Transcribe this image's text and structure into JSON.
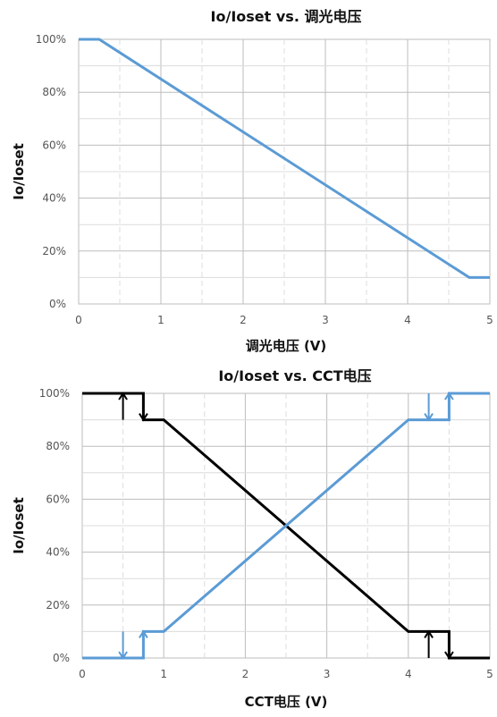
{
  "chart_data": [
    {
      "type": "line",
      "title": "Io/Ioset vs. 调光电压",
      "xlabel": "调光电压 (V)",
      "ylabel": "Io/Ioset",
      "xlim": [
        0,
        5
      ],
      "ylim": [
        0,
        100
      ],
      "x_ticks": [
        "0",
        "1",
        "2",
        "3",
        "4",
        "5"
      ],
      "y_ticks": [
        "0%",
        "20%",
        "40%",
        "60%",
        "80%",
        "100%"
      ],
      "grid": true,
      "series": [
        {
          "color": "#5b9bd5",
          "points": [
            [
              0,
              100
            ],
            [
              0.25,
              100
            ],
            [
              4.75,
              10
            ],
            [
              5,
              10
            ]
          ]
        }
      ]
    },
    {
      "type": "line",
      "title": "Io/Ioset vs. CCT电压",
      "xlabel": "CCT电压 (V)",
      "ylabel": "Io/Ioset",
      "xlim": [
        0,
        5
      ],
      "ylim": [
        0,
        100
      ],
      "x_ticks": [
        "0",
        "1",
        "2",
        "3",
        "4",
        "5"
      ],
      "y_ticks": [
        "0%",
        "20%",
        "40%",
        "60%",
        "80%",
        "100%"
      ],
      "grid": true,
      "series": [
        {
          "color": "#000000",
          "points": [
            [
              0,
              100
            ],
            [
              0.75,
              100
            ],
            [
              0.75,
              90
            ],
            [
              1,
              90
            ],
            [
              4,
              10
            ],
            [
              4.5,
              10
            ],
            [
              4.5,
              0
            ],
            [
              5,
              0
            ]
          ]
        },
        {
          "color": "#5b9bd5",
          "points": [
            [
              0,
              0
            ],
            [
              0.75,
              0
            ],
            [
              0.75,
              10
            ],
            [
              1,
              10
            ],
            [
              4,
              90
            ],
            [
              4.5,
              90
            ],
            [
              4.5,
              100
            ],
            [
              5,
              100
            ]
          ]
        }
      ],
      "hysteresis_arrows": [
        {
          "color": "#000000",
          "x": 0.5,
          "direction": "up",
          "y_from": 90,
          "y_to": 100
        },
        {
          "color": "#000000",
          "x": 0.75,
          "direction": "down",
          "y_from": 100,
          "y_to": 90
        },
        {
          "color": "#5b9bd5",
          "x": 0.5,
          "direction": "down",
          "y_from": 10,
          "y_to": 0
        },
        {
          "color": "#5b9bd5",
          "x": 0.75,
          "direction": "up",
          "y_from": 0,
          "y_to": 10
        },
        {
          "color": "#5b9bd5",
          "x": 4.25,
          "direction": "down",
          "y_from": 100,
          "y_to": 90
        },
        {
          "color": "#5b9bd5",
          "x": 4.5,
          "direction": "up",
          "y_from": 90,
          "y_to": 100
        },
        {
          "color": "#000000",
          "x": 4.25,
          "direction": "up",
          "y_from": 0,
          "y_to": 10
        },
        {
          "color": "#000000",
          "x": 4.5,
          "direction": "down",
          "y_from": 10,
          "y_to": 0
        }
      ]
    }
  ]
}
